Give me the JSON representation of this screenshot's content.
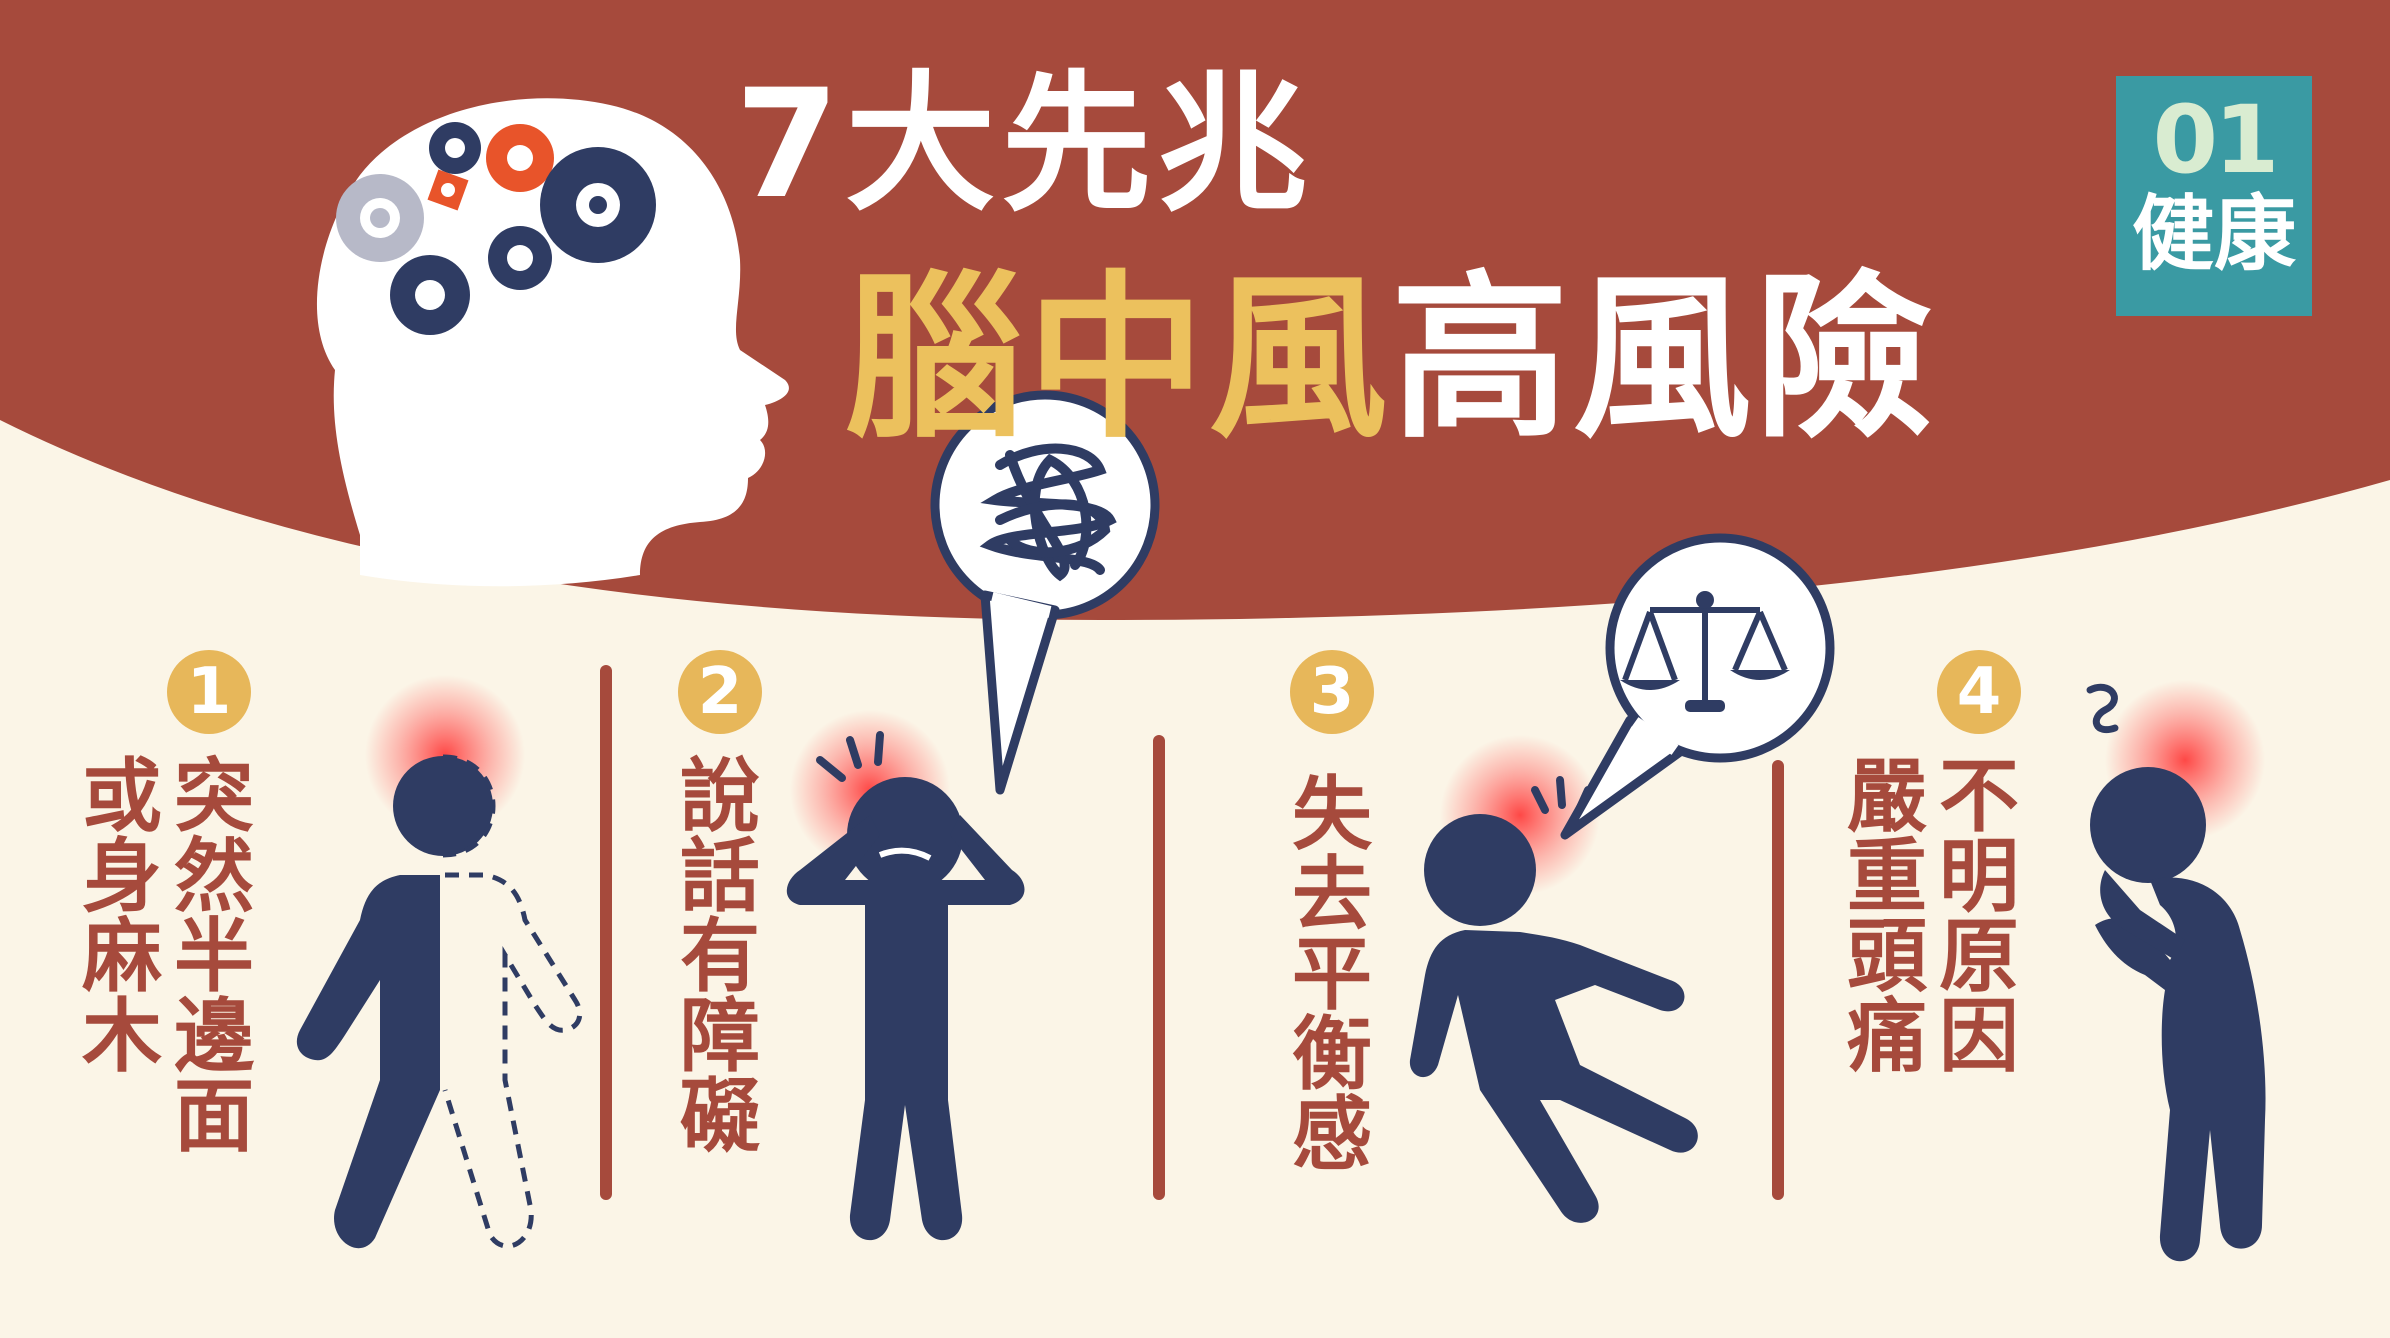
{
  "title": {
    "line1": "7大先兆",
    "line2_highlight": "腦中風",
    "line2_rest": "高風險"
  },
  "logo": {
    "number": "01",
    "word": "健康"
  },
  "symptoms": [
    {
      "number": "1",
      "col_right": "突然半邊面",
      "col_left": "或身麻木"
    },
    {
      "number": "2",
      "col": "說話有障礙"
    },
    {
      "number": "3",
      "col": "失去平衡感"
    },
    {
      "number": "4",
      "col_right": "不明原因",
      "col_left": "嚴重頭痛"
    }
  ],
  "icons": {
    "head": "head-with-gears-icon",
    "speech_tangle": "tangled-speech-bubble-icon",
    "balance": "balance-scale-icon"
  },
  "colors": {
    "banner": "#a64a3c",
    "background": "#fbf5e7",
    "figure": "#2f3c63",
    "accent_yellow": "#ecc15d",
    "logo": "#3a9aa3"
  }
}
